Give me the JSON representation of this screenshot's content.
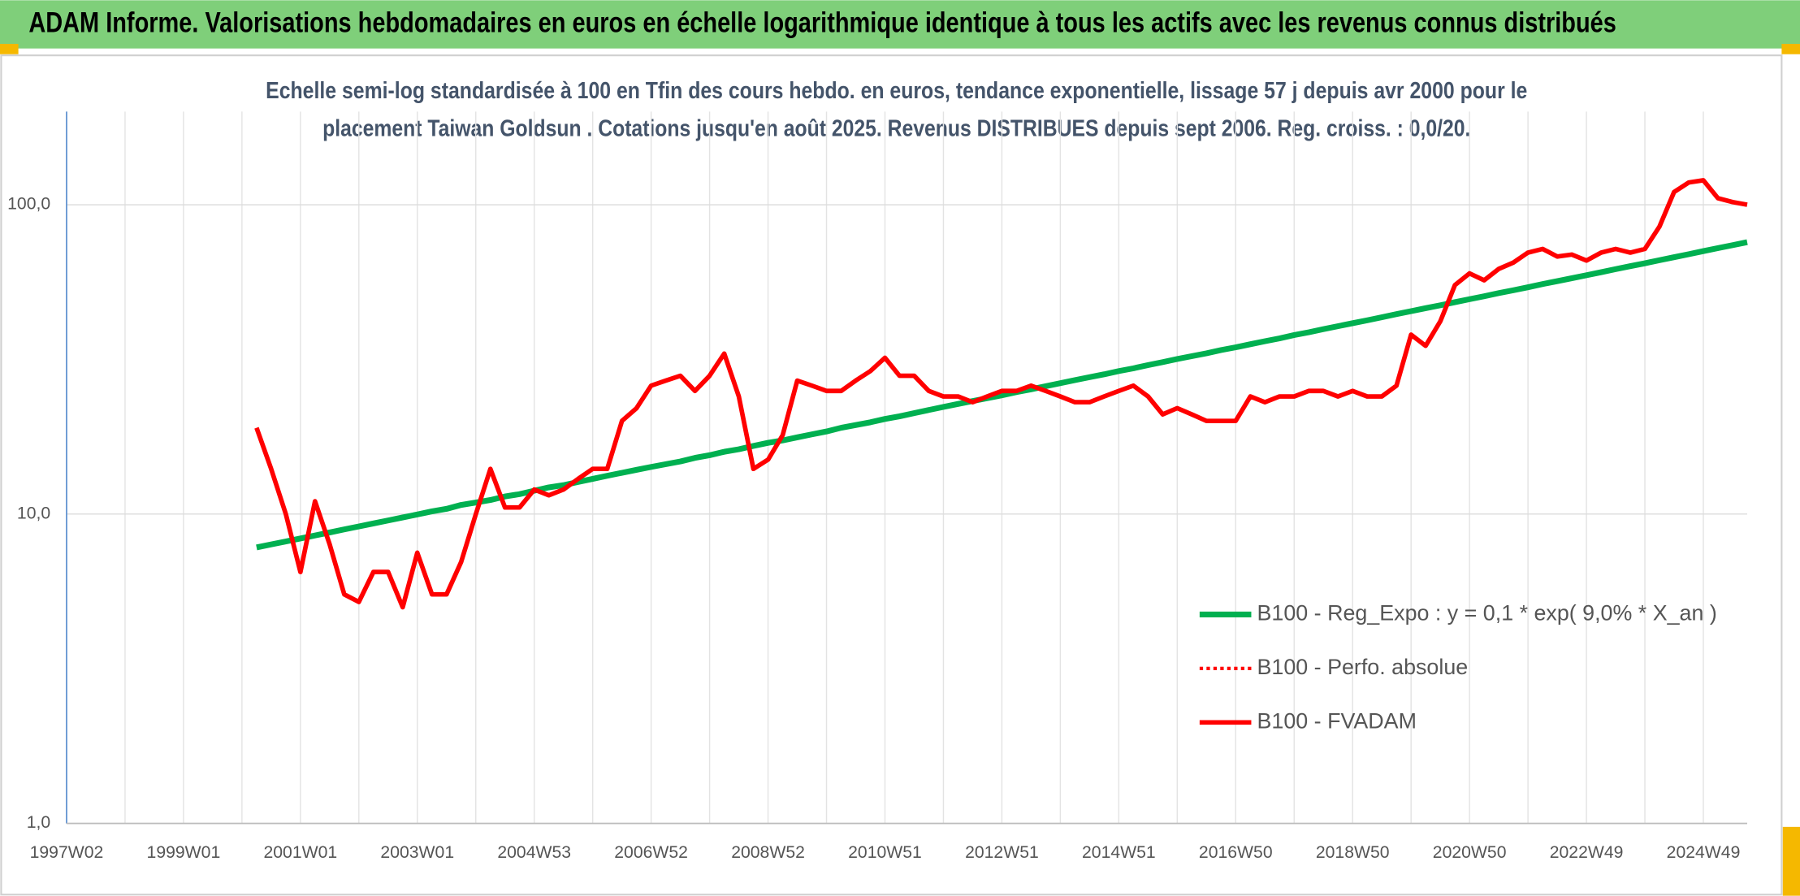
{
  "header": {
    "title": "ADAM Informe. Valorisations hebdomadaires en euros en échelle logarithmique identique à tous les actifs avec les revenus connus distribués"
  },
  "chart_data": {
    "type": "line",
    "title": [
      "Echelle semi-log standardisée à 100 en Tfin des cours hebdo. en euros, tendance exponentielle, lissage 57 j depuis avr 2000 pour le",
      "placement Taiwan Goldsun . Cotations jusqu'en août 2025. Revenus DISTRIBUES depuis sept 2006. Reg. croiss. : 0,0/20."
    ],
    "categories": [
      "1997W02",
      null,
      null,
      null,
      null,
      null,
      null,
      null,
      "1999W01",
      null,
      null,
      null,
      null,
      null,
      null,
      null,
      "2001W01",
      null,
      null,
      null,
      null,
      null,
      null,
      null,
      "2003W01",
      null,
      null,
      null,
      null,
      null,
      null,
      null,
      "2004W53",
      null,
      null,
      null,
      null,
      null,
      null,
      null,
      "2006W52",
      null,
      null,
      null,
      null,
      null,
      null,
      null,
      "2008W52",
      null,
      null,
      null,
      null,
      null,
      null,
      null,
      "2010W51",
      null,
      null,
      null,
      null,
      null,
      null,
      null,
      "2012W51",
      null,
      null,
      null,
      null,
      null,
      null,
      null,
      "2014W51",
      null,
      null,
      null,
      null,
      null,
      null,
      null,
      "2016W50",
      null,
      null,
      null,
      null,
      null,
      null,
      null,
      "2018W50",
      null,
      null,
      null,
      null,
      null,
      null,
      null,
      "2020W50",
      null,
      null,
      null,
      null,
      null,
      null,
      null,
      "2022W49",
      null,
      null,
      null,
      null,
      null,
      null,
      null,
      "2024W49",
      null,
      null,
      null
    ],
    "series": [
      {
        "name": "B100 - Reg_Expo : y = 0,1 * exp( 9,0% *  X_an )",
        "color": "#00b050",
        "style": "solid",
        "width": 5,
        "values": [
          null,
          null,
          null,
          null,
          null,
          null,
          null,
          null,
          null,
          null,
          null,
          null,
          null,
          7.8,
          7.98,
          8.16,
          8.34,
          8.53,
          8.72,
          8.92,
          9.12,
          9.33,
          9.54,
          9.75,
          9.97,
          10.2,
          10.4,
          10.7,
          10.9,
          11.1,
          11.4,
          11.6,
          11.9,
          12.2,
          12.4,
          12.7,
          13.0,
          13.3,
          13.6,
          13.9,
          14.2,
          14.5,
          14.8,
          15.2,
          15.5,
          15.9,
          16.2,
          16.6,
          17.0,
          17.3,
          17.7,
          18.1,
          18.5,
          19.0,
          19.4,
          19.8,
          20.3,
          20.7,
          21.2,
          21.7,
          22.2,
          22.7,
          23.2,
          23.7,
          24.2,
          24.8,
          25.3,
          25.9,
          26.5,
          27.1,
          27.7,
          28.3,
          29.0,
          29.6,
          30.3,
          31.0,
          31.7,
          32.4,
          33.1,
          33.9,
          34.6,
          35.4,
          36.2,
          37.0,
          37.9,
          38.7,
          39.6,
          40.5,
          41.4,
          42.3,
          43.3,
          44.3,
          45.3,
          46.3,
          47.3,
          48.4,
          49.5,
          50.6,
          51.8,
          52.9,
          54.1,
          55.4,
          56.6,
          57.9,
          59.2,
          60.5,
          61.9,
          63.3,
          64.7,
          66.2,
          67.7,
          69.2,
          70.8,
          72.4,
          74.0,
          75.7
        ]
      },
      {
        "name": "B100 - Perfo. absolue",
        "color": "#ff0000",
        "style": "dotted",
        "width": 3,
        "values": [
          null,
          null,
          null,
          null,
          null,
          null,
          null,
          null,
          null,
          null,
          null,
          null,
          null,
          null,
          null,
          null,
          null,
          null,
          null,
          null,
          null,
          null,
          null,
          null,
          null,
          null,
          null,
          null,
          null,
          null,
          null,
          null,
          null,
          null,
          null,
          null,
          null,
          null,
          null,
          null,
          null,
          null,
          null,
          null,
          null,
          null,
          null,
          null,
          null,
          null,
          null,
          null,
          null,
          null,
          null,
          null,
          null,
          null,
          null,
          null,
          null,
          null,
          null,
          null,
          null,
          null,
          null,
          null,
          null,
          null,
          null,
          null,
          null,
          null,
          null,
          null,
          null,
          null,
          null,
          null,
          null,
          null,
          null,
          null,
          null,
          null,
          null,
          null,
          null,
          null,
          null,
          null,
          null,
          null,
          null,
          null,
          null,
          null,
          null,
          null,
          null,
          null,
          null,
          null,
          null,
          null,
          null,
          null,
          null,
          null,
          null,
          null,
          null,
          null,
          null,
          null
        ]
      },
      {
        "name": "B100 - FVADAM",
        "color": "#ff0000",
        "style": "solid",
        "width": 4,
        "values": [
          null,
          null,
          null,
          null,
          null,
          null,
          null,
          null,
          null,
          null,
          null,
          null,
          null,
          19,
          14,
          10,
          6.5,
          11,
          8,
          5.5,
          5.2,
          6.5,
          6.5,
          5.0,
          7.5,
          5.5,
          5.5,
          7,
          10,
          14,
          10.5,
          10.5,
          12,
          11.5,
          12,
          13,
          14,
          14,
          20,
          22,
          26,
          27,
          28,
          25,
          28,
          33,
          24,
          14,
          15,
          18,
          27,
          26,
          25,
          25,
          27,
          29,
          32,
          28,
          28,
          25,
          24,
          24,
          23,
          24,
          25,
          25,
          26,
          25,
          24,
          23,
          23,
          24,
          25,
          26,
          24,
          21,
          22,
          21,
          20,
          20,
          20,
          24,
          23,
          24,
          24,
          25,
          25,
          24,
          25,
          24,
          24,
          26,
          38,
          35,
          42,
          55,
          60,
          57,
          62,
          65,
          70,
          72,
          68,
          69,
          66,
          70,
          72,
          70,
          72,
          85,
          110,
          118,
          120,
          105,
          102,
          100
        ]
      }
    ],
    "log_y": true,
    "ylim": [
      1,
      200
    ],
    "yticks": [
      {
        "value": 1,
        "label": "1,0"
      },
      {
        "value": 10,
        "label": "10,0"
      },
      {
        "value": 100,
        "label": "100,0"
      }
    ],
    "grid": true,
    "legend": "lower right"
  }
}
